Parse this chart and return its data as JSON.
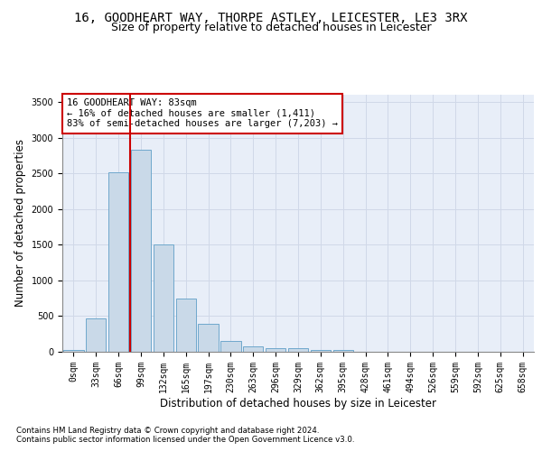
{
  "title_line1": "16, GOODHEART WAY, THORPE ASTLEY, LEICESTER, LE3 3RX",
  "title_line2": "Size of property relative to detached houses in Leicester",
  "xlabel": "Distribution of detached houses by size in Leicester",
  "ylabel": "Number of detached properties",
  "bar_labels": [
    "0sqm",
    "33sqm",
    "66sqm",
    "99sqm",
    "132sqm",
    "165sqm",
    "197sqm",
    "230sqm",
    "263sqm",
    "296sqm",
    "329sqm",
    "362sqm",
    "395sqm",
    "428sqm",
    "461sqm",
    "494sqm",
    "526sqm",
    "559sqm",
    "592sqm",
    "625sqm",
    "658sqm"
  ],
  "bar_values": [
    20,
    470,
    2510,
    2830,
    1500,
    740,
    390,
    155,
    75,
    50,
    45,
    30,
    20,
    0,
    0,
    0,
    0,
    0,
    0,
    0,
    0
  ],
  "bar_color": "#c9d9e8",
  "bar_edge_color": "#6fa8cc",
  "vline_color": "#cc0000",
  "annotation_text": "16 GOODHEART WAY: 83sqm\n← 16% of detached houses are smaller (1,411)\n83% of semi-detached houses are larger (7,203) →",
  "annotation_box_color": "#ffffff",
  "annotation_box_edge": "#cc0000",
  "ylim": [
    0,
    3600
  ],
  "yticks": [
    0,
    500,
    1000,
    1500,
    2000,
    2500,
    3000,
    3500
  ],
  "grid_color": "#d0d8e8",
  "bg_color": "#e8eef8",
  "footer_line1": "Contains HM Land Registry data © Crown copyright and database right 2024.",
  "footer_line2": "Contains public sector information licensed under the Open Government Licence v3.0.",
  "title_fontsize": 10,
  "subtitle_fontsize": 9,
  "axis_label_fontsize": 8.5,
  "tick_fontsize": 7
}
